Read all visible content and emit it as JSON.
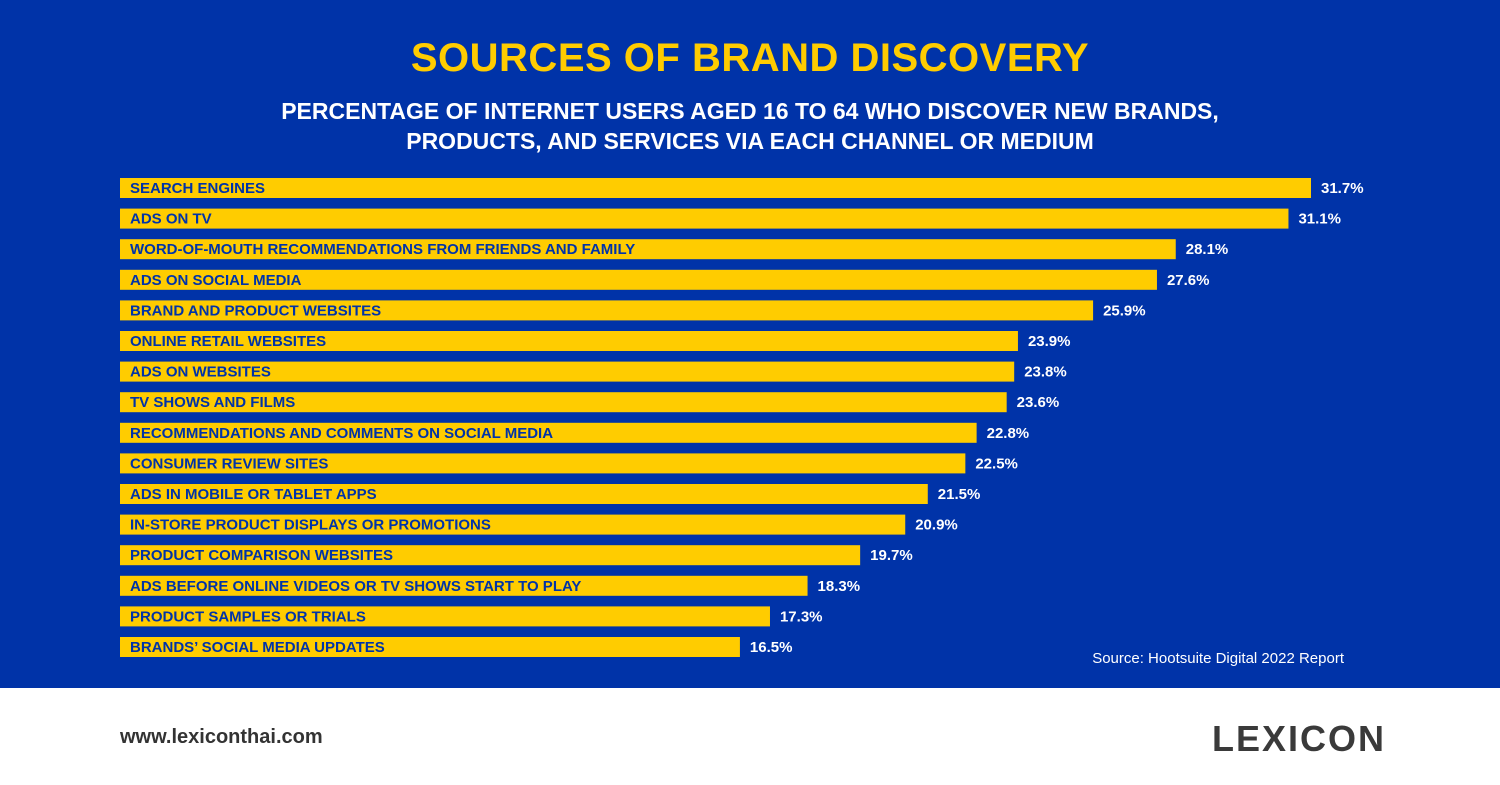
{
  "chart_data": {
    "type": "bar",
    "orientation": "horizontal",
    "title": "SOURCES OF BRAND DISCOVERY",
    "subtitle": "PERCENTAGE OF INTERNET USERS AGED 16 TO 64 WHO DISCOVER NEW BRANDS, PRODUCTS, AND SERVICES VIA EACH CHANNEL OR MEDIUM",
    "categories": [
      "SEARCH ENGINES",
      "ADS ON TV",
      "WORD-OF-MOUTH RECOMMENDATIONS FROM FRIENDS AND FAMILY",
      "ADS ON SOCIAL MEDIA",
      "BRAND AND PRODUCT WEBSITES",
      "ONLINE RETAIL WEBSITES",
      "ADS ON WEBSITES",
      "TV SHOWS AND FILMS",
      "RECOMMENDATIONS AND COMMENTS ON SOCIAL MEDIA",
      "CONSUMER REVIEW SITES",
      "ADS IN MOBILE OR TABLET APPS",
      "IN-STORE PRODUCT DISPLAYS OR PROMOTIONS",
      "PRODUCT COMPARISON WEBSITES",
      "ADS BEFORE ONLINE VIDEOS OR TV SHOWS START TO PLAY",
      "PRODUCT SAMPLES OR TRIALS",
      "BRANDS’ SOCIAL MEDIA UPDATES"
    ],
    "values": [
      31.7,
      31.1,
      28.1,
      27.6,
      25.9,
      23.9,
      23.8,
      23.6,
      22.8,
      22.5,
      21.5,
      20.9,
      19.7,
      18.3,
      17.3,
      16.5
    ],
    "value_labels": [
      "31.7%",
      "31.1%",
      "28.1%",
      "27.6%",
      "25.9%",
      "23.9%",
      "23.8%",
      "23.6%",
      "22.8%",
      "22.5%",
      "21.5%",
      "20.9%",
      "19.7%",
      "18.3%",
      "17.3%",
      "16.5%"
    ],
    "grid": false,
    "legend": "none",
    "bar_color": "#ffcc00",
    "label_color": "#0033a8",
    "value_label_color": "#ffffff",
    "background_color": "#0033a8"
  },
  "source": "Source: Hootsuite Digital 2022 Report",
  "footer": {
    "website": "www.lexiconthai.com",
    "logo": "LEXICON"
  }
}
